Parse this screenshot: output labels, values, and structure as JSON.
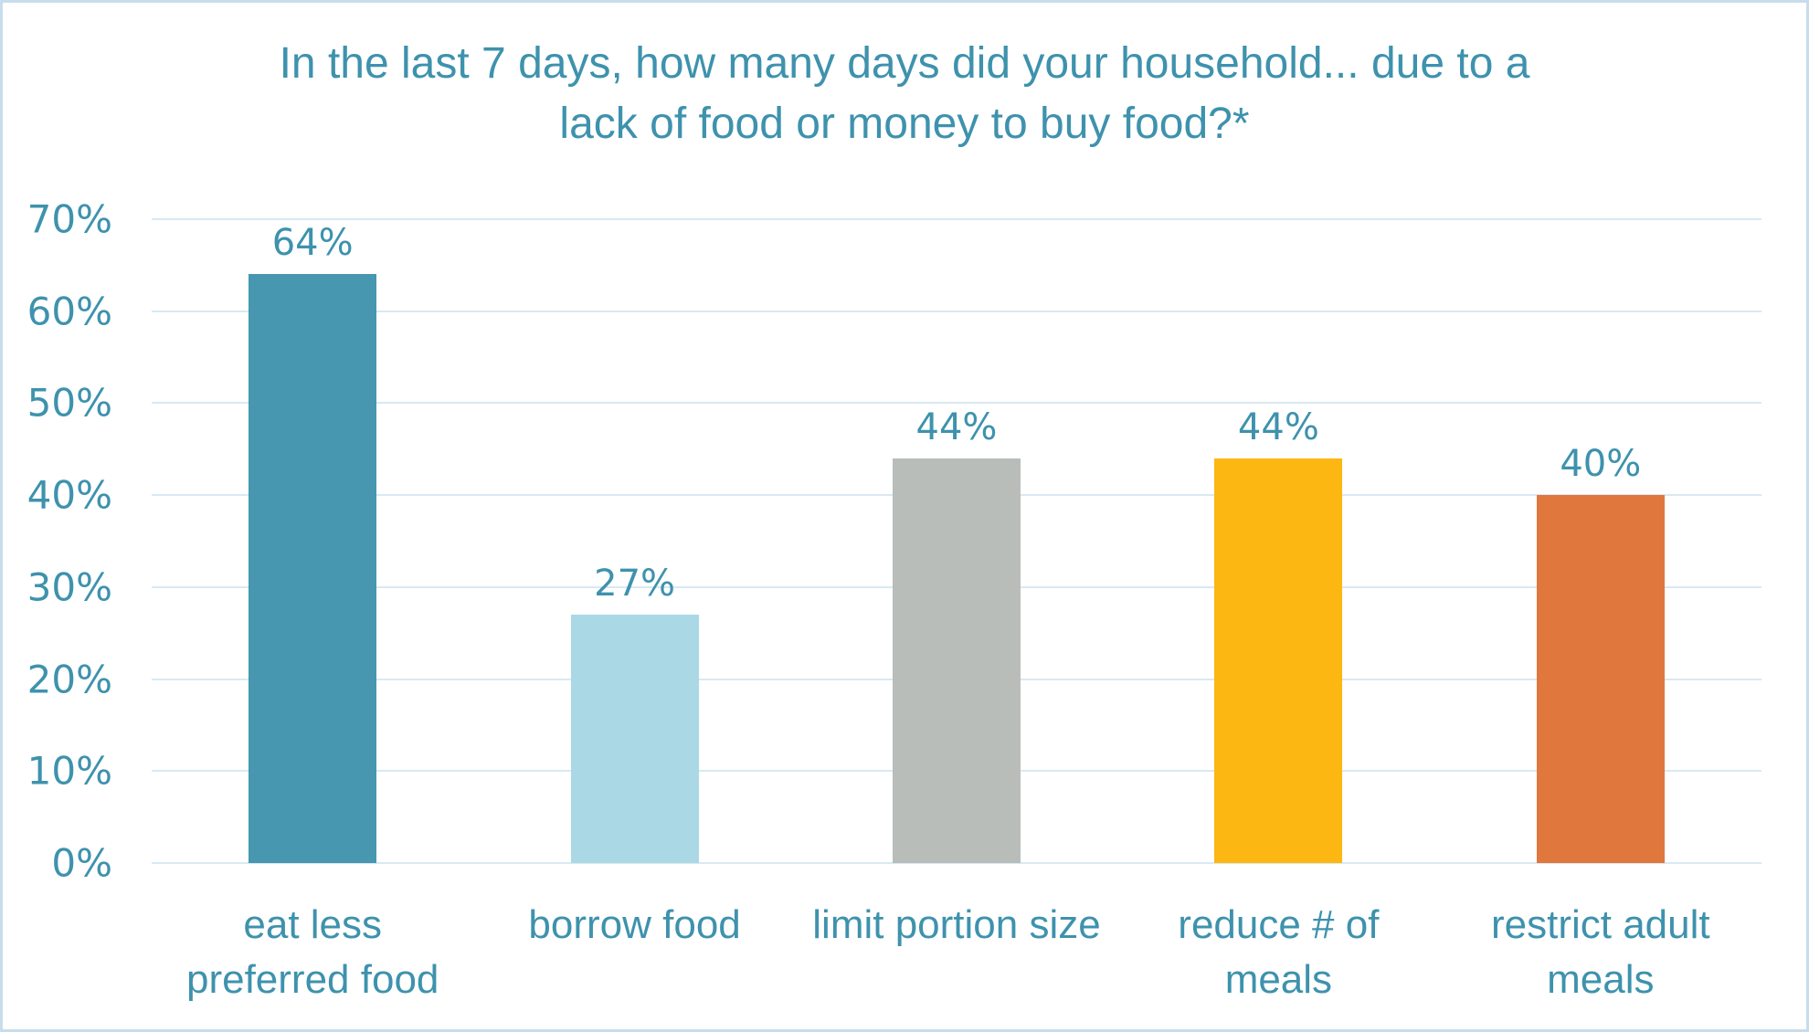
{
  "chart_data": {
    "type": "bar",
    "title": "In the last 7 days, how many days did your household... due to a lack of food or money to buy food?*",
    "title_lines": [
      "In the last 7 days, how many days did your household... due to a",
      "lack of food or money to buy food?*"
    ],
    "categories": [
      "eat less preferred food",
      "borrow food",
      "limit portion size",
      "reduce # of meals",
      "restrict adult meals"
    ],
    "category_lines": [
      [
        "eat less",
        "preferred food"
      ],
      [
        "borrow food"
      ],
      [
        "limit portion size"
      ],
      [
        "reduce # of",
        "meals"
      ],
      [
        "restrict adult",
        "meals"
      ]
    ],
    "values": [
      64,
      27,
      44,
      44,
      40
    ],
    "data_labels": [
      "64%",
      "27%",
      "44%",
      "44%",
      "40%"
    ],
    "bar_colors": [
      "#4697af",
      "#aad8e4",
      "#b8bdba",
      "#fdb712",
      "#e0773c"
    ],
    "xlabel": "",
    "ylabel": "",
    "ylim": [
      0,
      70
    ],
    "ytick_interval": 10,
    "ytick_labels": [
      "0%",
      "10%",
      "20%",
      "30%",
      "40%",
      "50%",
      "60%",
      "70%"
    ],
    "grid": true,
    "legend": false
  },
  "style": {
    "text_color": "#3e92ad",
    "gridline_color": "#d9e9f2",
    "border_color": "#c7ddeb",
    "background_color": "#ffffff"
  }
}
